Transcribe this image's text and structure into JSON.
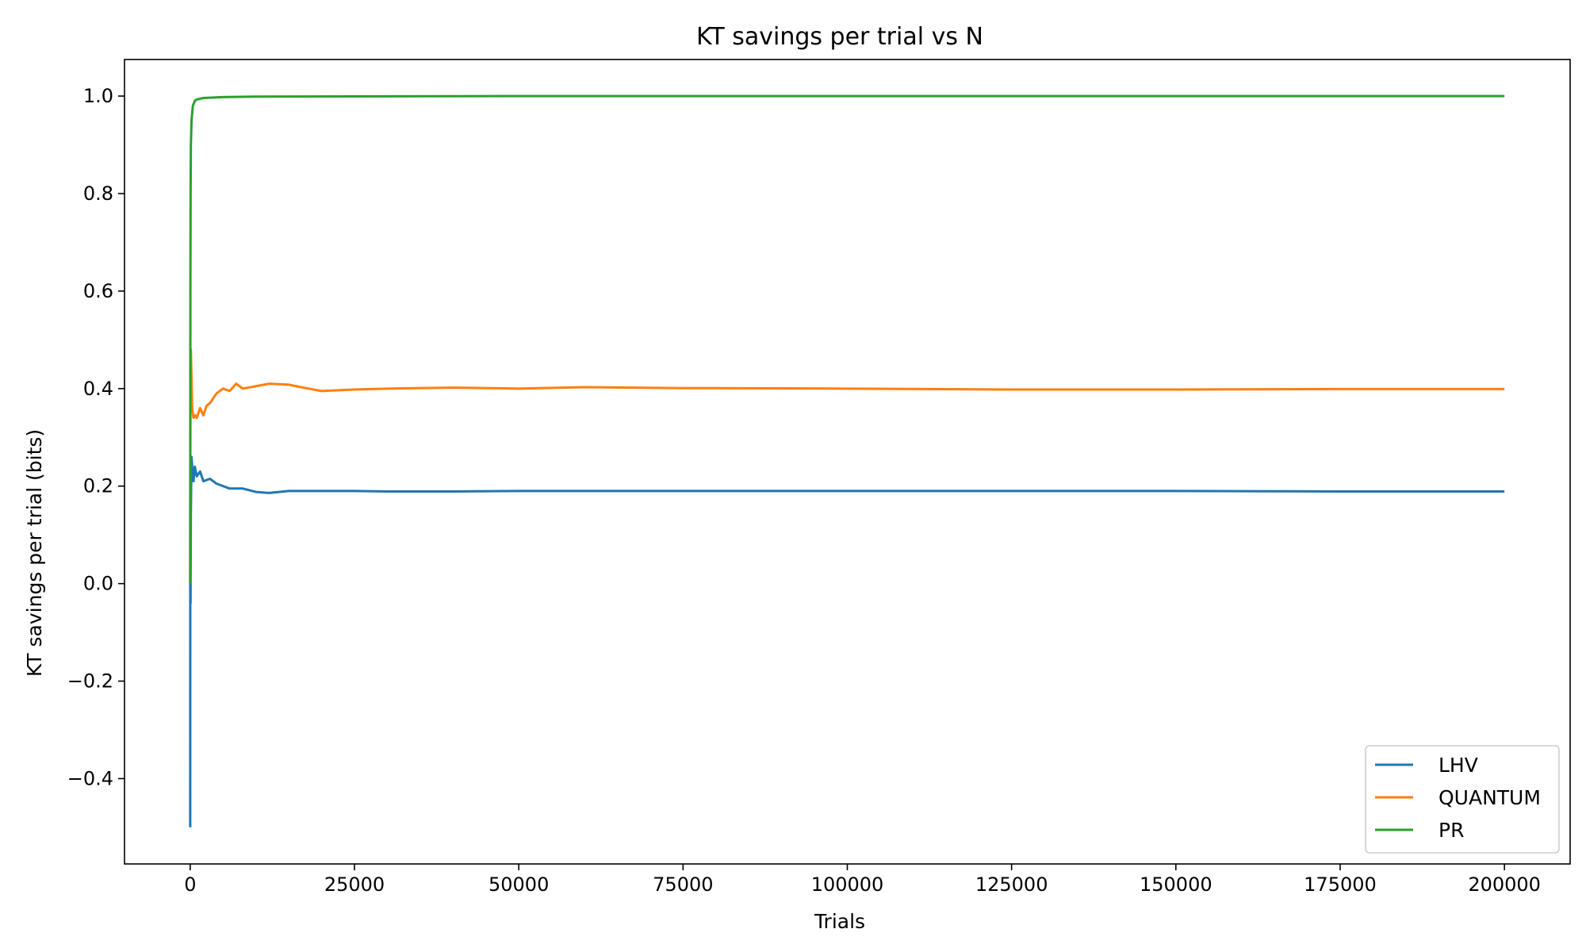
{
  "chart_data": {
    "type": "line",
    "title": "KT savings per trial vs N",
    "xlabel": "Trials",
    "ylabel": "KT savings per trial (bits)",
    "xlim": [
      -10000,
      210000
    ],
    "ylim": [
      -0.575,
      1.075
    ],
    "xticks": [
      0,
      25000,
      50000,
      75000,
      100000,
      125000,
      150000,
      175000,
      200000
    ],
    "xtick_labels": [
      "0",
      "25000",
      "50000",
      "75000",
      "100000",
      "125000",
      "150000",
      "175000",
      "200000"
    ],
    "yticks": [
      -0.4,
      -0.2,
      0.0,
      0.2,
      0.4,
      0.6,
      0.8,
      1.0
    ],
    "ytick_labels": [
      "−0.4",
      "−0.2",
      "0.0",
      "0.2",
      "0.4",
      "0.6",
      "0.8",
      "1.0"
    ],
    "grid": false,
    "legend_position": "lower-right",
    "series": [
      {
        "name": "LHV",
        "color": "#1f77b4",
        "x": [
          1,
          10,
          50,
          100,
          200,
          300,
          500,
          700,
          1000,
          1500,
          2000,
          3000,
          4000,
          5000,
          6000,
          8000,
          10000,
          12000,
          15000,
          20000,
          25000,
          30000,
          40000,
          50000,
          60000,
          75000,
          100000,
          125000,
          150000,
          175000,
          200000
        ],
        "y": [
          -0.5,
          0.0,
          -0.04,
          0.15,
          0.26,
          0.24,
          0.21,
          0.24,
          0.22,
          0.23,
          0.21,
          0.215,
          0.205,
          0.2,
          0.195,
          0.195,
          0.188,
          0.186,
          0.19,
          0.19,
          0.19,
          0.189,
          0.189,
          0.19,
          0.19,
          0.19,
          0.19,
          0.19,
          0.19,
          0.189,
          0.189
        ]
      },
      {
        "name": "QUANTUM",
        "color": "#ff7f0e",
        "x": [
          1,
          10,
          50,
          100,
          200,
          300,
          500,
          800,
          1000,
          1500,
          2000,
          2500,
          3000,
          4000,
          5000,
          6000,
          7000,
          8000,
          10000,
          12000,
          15000,
          18000,
          20000,
          25000,
          30000,
          40000,
          50000,
          60000,
          75000,
          100000,
          125000,
          150000,
          175000,
          200000
        ],
        "y": [
          0.0,
          0.2,
          0.44,
          0.48,
          0.42,
          0.36,
          0.34,
          0.345,
          0.34,
          0.36,
          0.345,
          0.365,
          0.37,
          0.39,
          0.4,
          0.395,
          0.41,
          0.4,
          0.405,
          0.41,
          0.408,
          0.4,
          0.395,
          0.398,
          0.4,
          0.402,
          0.4,
          0.403,
          0.401,
          0.4,
          0.398,
          0.398,
          0.399,
          0.399
        ]
      },
      {
        "name": "PR",
        "color": "#2ca02c",
        "x": [
          1,
          10,
          30,
          60,
          100,
          200,
          400,
          700,
          1000,
          2000,
          5000,
          10000,
          50000,
          100000,
          150000,
          200000
        ],
        "y": [
          0.0,
          0.3,
          0.6,
          0.8,
          0.9,
          0.95,
          0.98,
          0.99,
          0.993,
          0.996,
          0.998,
          0.999,
          1.0,
          1.0,
          1.0,
          1.0
        ]
      }
    ]
  }
}
